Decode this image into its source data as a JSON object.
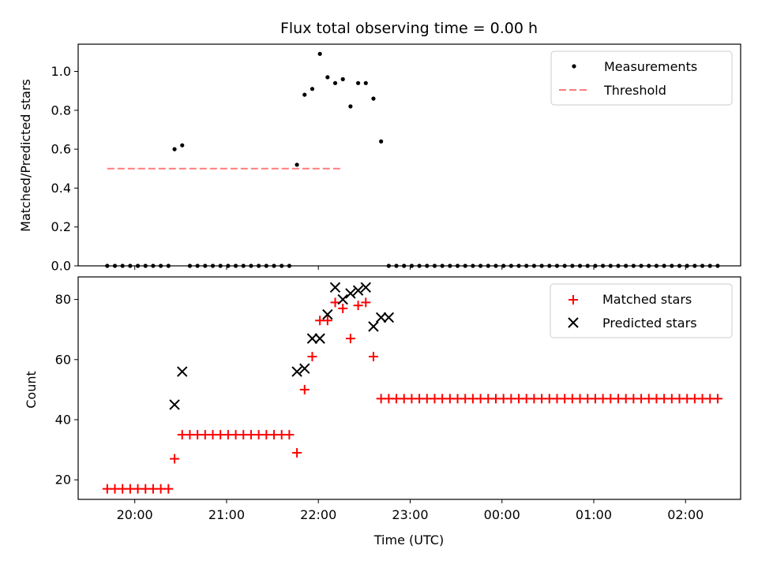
{
  "chart_data": [
    {
      "type": "scatter",
      "title": "Flux total observing time = 0.00 h",
      "xlabel": "",
      "ylabel": "Matched/Predicted stars",
      "ylim": [
        0,
        1.14
      ],
      "yticks": [
        "0.0",
        "0.2",
        "0.4",
        "0.6",
        "0.8",
        "1.0"
      ],
      "legend_position": "top-right",
      "series": [
        {
          "name": "Measurements",
          "marker": "dot",
          "color": "#000000",
          "x": [
            "19:42",
            "19:47",
            "19:52",
            "19:57",
            "20:02",
            "20:07",
            "20:12",
            "20:17",
            "20:22",
            "20:26",
            "20:31",
            "20:36",
            "20:41",
            "20:46",
            "20:51",
            "20:56",
            "21:01",
            "21:06",
            "21:11",
            "21:16",
            "21:21",
            "21:26",
            "21:31",
            "21:36",
            "21:41",
            "21:46",
            "21:51",
            "21:56",
            "22:01",
            "22:06",
            "22:11",
            "22:16",
            "22:21",
            "22:26",
            "22:31",
            "22:36",
            "22:41",
            "22:46",
            "22:51",
            "22:56",
            "23:01",
            "23:06",
            "23:11",
            "23:16",
            "23:21",
            "23:26",
            "23:31",
            "23:36",
            "23:41",
            "23:46",
            "23:51",
            "23:56",
            "00:01",
            "00:06",
            "00:11",
            "00:16",
            "00:21",
            "00:26",
            "00:31",
            "00:36",
            "00:41",
            "00:46",
            "00:51",
            "00:56",
            "01:01",
            "01:06",
            "01:11",
            "01:16",
            "01:21",
            "01:26",
            "01:31",
            "01:36",
            "01:41",
            "01:46",
            "01:51",
            "01:56",
            "02:01",
            "02:06",
            "02:11",
            "02:16",
            "02:21"
          ],
          "y": [
            0,
            0,
            0,
            0,
            0,
            0,
            0,
            0,
            0,
            0.6,
            0.62,
            0,
            0,
            0,
            0,
            0,
            0,
            0,
            0,
            0,
            0,
            0,
            0,
            0,
            0,
            0.52,
            0.88,
            0.91,
            1.09,
            0.97,
            0.94,
            0.96,
            0.82,
            0.94,
            0.94,
            0.86,
            0.64,
            0,
            0,
            0,
            0,
            0,
            0,
            0,
            0,
            0,
            0,
            0,
            0,
            0,
            0,
            0,
            0,
            0,
            0,
            0,
            0,
            0,
            0,
            0,
            0,
            0,
            0,
            0,
            0,
            0,
            0,
            0,
            0,
            0,
            0,
            0,
            0,
            0,
            0,
            0,
            0,
            0,
            0,
            0,
            0
          ]
        },
        {
          "name": "Threshold",
          "style": "dashed-line",
          "color": "#ff7b7b",
          "x": [
            "19:42",
            "22:16"
          ],
          "y": [
            0.5,
            0.5
          ]
        }
      ]
    },
    {
      "type": "scatter",
      "title": "",
      "xlabel": "Time (UTC)",
      "ylabel": "Count",
      "ylim": [
        13.5,
        87.5
      ],
      "yticks": [
        "20",
        "40",
        "60",
        "80"
      ],
      "xticks": [
        "20:00",
        "21:00",
        "22:00",
        "23:00",
        "00:00",
        "01:00",
        "02:00"
      ],
      "legend_position": "top-right",
      "series": [
        {
          "name": "Matched stars",
          "marker": "plus",
          "color": "#ff0000",
          "x": [
            "19:42",
            "19:47",
            "19:52",
            "19:57",
            "20:02",
            "20:07",
            "20:12",
            "20:17",
            "20:22",
            "20:26",
            "20:31",
            "20:36",
            "20:41",
            "20:46",
            "20:51",
            "20:56",
            "21:01",
            "21:06",
            "21:11",
            "21:16",
            "21:21",
            "21:26",
            "21:31",
            "21:36",
            "21:41",
            "21:46",
            "21:51",
            "21:56",
            "22:01",
            "22:06",
            "22:11",
            "22:16",
            "22:21",
            "22:26",
            "22:31",
            "22:36",
            "22:41",
            "22:46",
            "22:51",
            "22:56",
            "23:01",
            "23:06",
            "23:11",
            "23:16",
            "23:21",
            "23:26",
            "23:31",
            "23:36",
            "23:41",
            "23:46",
            "23:51",
            "23:56",
            "00:01",
            "00:06",
            "00:11",
            "00:16",
            "00:21",
            "00:26",
            "00:31",
            "00:36",
            "00:41",
            "00:46",
            "00:51",
            "00:56",
            "01:01",
            "01:06",
            "01:11",
            "01:16",
            "01:21",
            "01:26",
            "01:31",
            "01:36",
            "01:41",
            "01:46",
            "01:51",
            "01:56",
            "02:01",
            "02:06",
            "02:11",
            "02:16",
            "02:21"
          ],
          "y": [
            17,
            17,
            17,
            17,
            17,
            17,
            17,
            17,
            17,
            27,
            35,
            35,
            35,
            35,
            35,
            35,
            35,
            35,
            35,
            35,
            35,
            35,
            35,
            35,
            35,
            29,
            50,
            61,
            73,
            73,
            79,
            77,
            67,
            78,
            79,
            61,
            47,
            47,
            47,
            47,
            47,
            47,
            47,
            47,
            47,
            47,
            47,
            47,
            47,
            47,
            47,
            47,
            47,
            47,
            47,
            47,
            47,
            47,
            47,
            47,
            47,
            47,
            47,
            47,
            47,
            47,
            47,
            47,
            47,
            47,
            47,
            47,
            47,
            47,
            47,
            47,
            47,
            47,
            47,
            47,
            47
          ]
        },
        {
          "name": "Predicted stars",
          "marker": "x",
          "color": "#000000",
          "x": [
            "20:26",
            "20:31",
            "21:46",
            "21:51",
            "21:56",
            "22:01",
            "22:06",
            "22:11",
            "22:16",
            "22:21",
            "22:26",
            "22:31",
            "22:36",
            "22:41",
            "22:46"
          ],
          "y": [
            45,
            56,
            56,
            57,
            67,
            67,
            75,
            84,
            80,
            82,
            83,
            84,
            71,
            74,
            74
          ]
        }
      ]
    }
  ]
}
